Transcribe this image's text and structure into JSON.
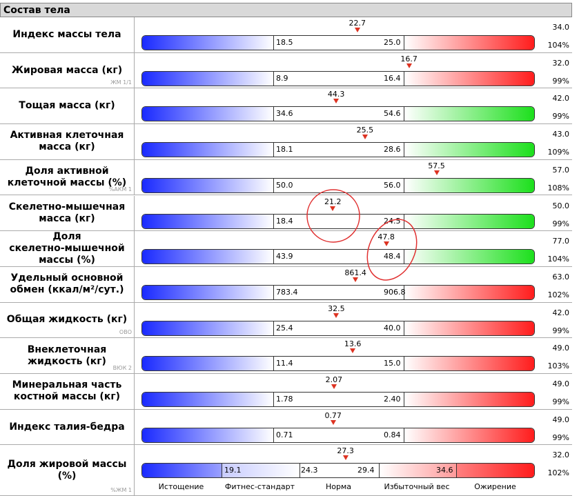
{
  "header": {
    "title": "Состав тела"
  },
  "rows": [
    {
      "label": "Индекс массы тела",
      "value": "22.7",
      "low": "18.5",
      "high": "25.0",
      "norm": "34.0",
      "percent": "104%",
      "tone": "red"
    },
    {
      "label": "Жировая масса (кг)",
      "code": "ЖМ 1/1",
      "value": "16.7",
      "low": "8.9",
      "high": "16.4",
      "norm": "32.0",
      "percent": "99%",
      "tone": "red"
    },
    {
      "label": "Тощая масса (кг)",
      "value": "44.3",
      "low": "34.6",
      "high": "54.6",
      "norm": "42.0",
      "percent": "99%",
      "tone": "green"
    },
    {
      "label": "Активная клеточная\nмасса (кг)",
      "value": "25.5",
      "low": "18.1",
      "high": "28.6",
      "norm": "43.0",
      "percent": "109%",
      "tone": "green"
    },
    {
      "label": "Доля активной\nклеточной массы (%)",
      "code": "%АКМ 1",
      "value": "57.5",
      "low": "50.0",
      "high": "56.0",
      "norm": "57.0",
      "percent": "108%",
      "tone": "green"
    },
    {
      "label": "Скелетно-мышечная\nмасса (кг)",
      "value": "21.2",
      "low": "18.4",
      "high": "24.5",
      "norm": "50.0",
      "percent": "99%",
      "tone": "green"
    },
    {
      "label": "Доля\nскелетно-мышечной\nмассы (%)",
      "value": "47.8",
      "low": "43.9",
      "high": "48.4",
      "norm": "77.0",
      "percent": "104%",
      "tone": "green"
    },
    {
      "label": "Удельный основной\nобмен (ккал/м²/сут.)",
      "value": "861.4",
      "low": "783.4",
      "high": "906.8",
      "norm": "63.0",
      "percent": "102%",
      "tone": "red"
    },
    {
      "label": "Общая жидкость (кг)",
      "code": "ОВО",
      "value": "32.5",
      "low": "25.4",
      "high": "40.0",
      "norm": "42.0",
      "percent": "99%",
      "tone": "red"
    },
    {
      "label": "Внеклеточная\nжидкость (кг)",
      "code": "ВЮК 2",
      "value": "13.6",
      "low": "11.4",
      "high": "15.0",
      "norm": "49.0",
      "percent": "103%",
      "tone": "red"
    },
    {
      "label": "Минеральная часть\nкостной массы (кг)",
      "value": "2.07",
      "low": "1.78",
      "high": "2.40",
      "norm": "49.0",
      "percent": "99%",
      "tone": "red"
    },
    {
      "label": "Индекс талия-бедра",
      "value": "0.77",
      "low": "0.71",
      "high": "0.84",
      "norm": "49.0",
      "percent": "99%",
      "tone": "red"
    }
  ],
  "fat_percent": {
    "label": "Доля жировой массы\n(%)",
    "code": "%ЖМ 1",
    "value": "27.3",
    "thresholds": [
      "19.1",
      "24.3",
      "29.4",
      "34.6"
    ],
    "zones": [
      "Истощение",
      "Фитнес-стандарт",
      "Норма",
      "Избыточный вес",
      "Ожирение"
    ],
    "norm": "32.0",
    "percent": "102%"
  }
}
